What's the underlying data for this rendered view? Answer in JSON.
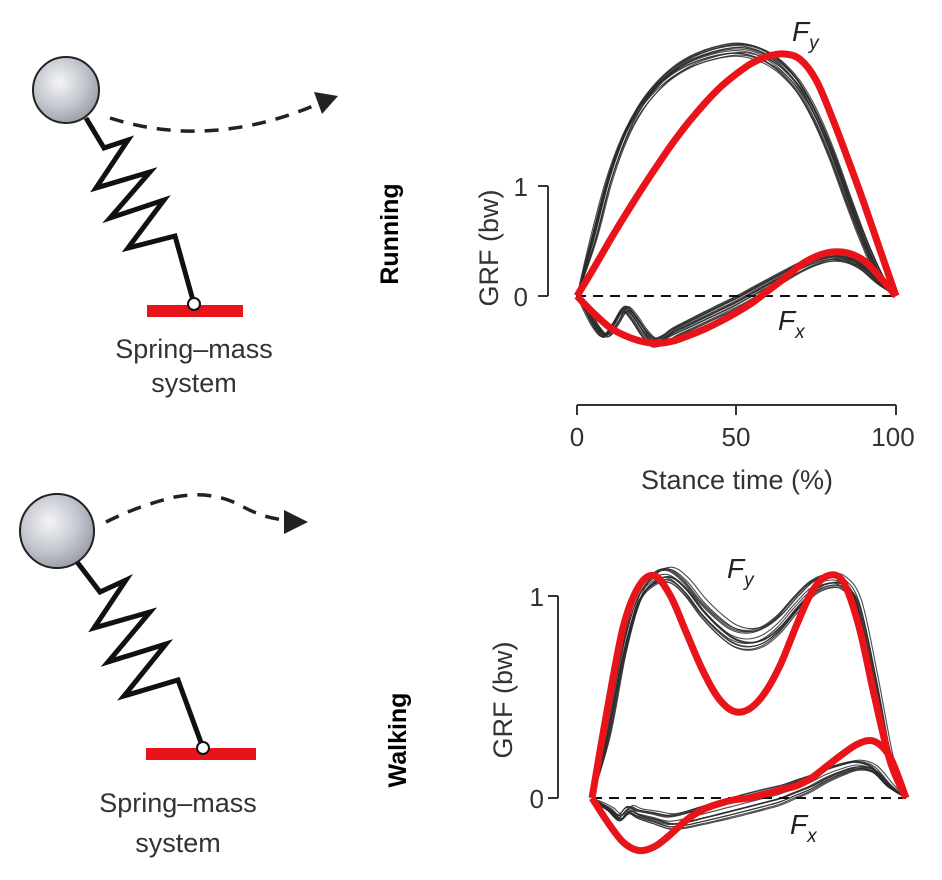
{
  "panels": [
    {
      "row_label": "Running",
      "model_caption_line1": "Spring–mass",
      "model_caption_line2": "system"
    },
    {
      "row_label": "Walking",
      "model_caption_line1": "Spring–mass",
      "model_caption_line2": "system"
    }
  ],
  "colors": {
    "measured": "#2a2a2a",
    "model": "#e8141a",
    "ground": "#e8141a",
    "mass": "#c8cbd3",
    "spring": "#111111"
  },
  "chart_data": [
    {
      "type": "line",
      "title": "",
      "ylabel": "GRF (bw)",
      "xlabel": "Stance time (%)",
      "xlim": [
        0,
        100
      ],
      "ylim": [
        -0.5,
        2.5
      ],
      "xticks": [
        "0",
        "50",
        "100"
      ],
      "yticks": [
        "0",
        "1"
      ],
      "zero_line": "dashed",
      "annotations": [
        {
          "text": "F",
          "sub": "y",
          "x": 73,
          "y": 2.36
        },
        {
          "text": "F",
          "sub": "x",
          "x": 66,
          "y": -0.28
        }
      ],
      "series": [
        {
          "role": "model",
          "component": "Fy",
          "x": [
            0,
            5,
            10,
            15,
            20,
            25,
            30,
            35,
            40,
            45,
            50,
            55,
            60,
            65,
            70,
            75,
            80,
            85,
            90,
            95,
            100
          ],
          "y": [
            0,
            0.24,
            0.49,
            0.73,
            0.96,
            1.18,
            1.39,
            1.58,
            1.75,
            1.9,
            2.02,
            2.12,
            2.18,
            2.2,
            2.15,
            1.96,
            1.62,
            1.24,
            0.84,
            0.42,
            0
          ]
        },
        {
          "role": "model",
          "component": "Fx",
          "x": [
            0,
            5,
            10,
            15,
            20,
            25,
            30,
            35,
            40,
            45,
            50,
            55,
            60,
            65,
            70,
            75,
            80,
            85,
            90,
            95,
            100
          ],
          "y": [
            0,
            -0.15,
            -0.28,
            -0.36,
            -0.41,
            -0.43,
            -0.41,
            -0.36,
            -0.3,
            -0.23,
            -0.15,
            -0.06,
            0.05,
            0.16,
            0.28,
            0.36,
            0.4,
            0.39,
            0.32,
            0.17,
            0
          ]
        },
        {
          "role": "measured",
          "component": "Fy",
          "x": [
            0,
            5,
            10,
            15,
            20,
            25,
            30,
            35,
            40,
            45,
            50,
            55,
            60,
            65,
            70,
            75,
            80,
            85,
            90,
            95,
            100
          ],
          "y": [
            0,
            0.5,
            1.05,
            1.45,
            1.72,
            1.9,
            2.03,
            2.12,
            2.18,
            2.22,
            2.24,
            2.22,
            2.16,
            2.05,
            1.88,
            1.62,
            1.28,
            0.88,
            0.5,
            0.18,
            0
          ]
        },
        {
          "role": "measured",
          "component": "Fx",
          "x": [
            0,
            3,
            6,
            9,
            12,
            15,
            18,
            21,
            24,
            27,
            30,
            35,
            40,
            45,
            50,
            55,
            60,
            65,
            70,
            75,
            80,
            85,
            90,
            95,
            100
          ],
          "y": [
            0,
            -0.12,
            -0.28,
            -0.36,
            -0.25,
            -0.12,
            -0.2,
            -0.33,
            -0.42,
            -0.4,
            -0.34,
            -0.27,
            -0.2,
            -0.13,
            -0.06,
            0.02,
            0.1,
            0.18,
            0.26,
            0.32,
            0.35,
            0.33,
            0.25,
            0.12,
            0
          ]
        }
      ]
    },
    {
      "type": "line",
      "title": "",
      "ylabel": "GRF (bw)",
      "xlabel": "",
      "xlim": [
        0,
        100
      ],
      "ylim": [
        -0.2,
        1.2
      ],
      "yticks": [
        "0",
        "1"
      ],
      "zero_line": "dashed",
      "annotations": [
        {
          "text": "F",
          "sub": "y",
          "x": 42,
          "y": 1.12
        },
        {
          "text": "F",
          "sub": "x",
          "x": 59,
          "y": -0.15
        }
      ],
      "series": [
        {
          "role": "model",
          "component": "Fy",
          "x": [
            0,
            5,
            10,
            15,
            20,
            25,
            30,
            35,
            40,
            45,
            50,
            55,
            60,
            65,
            70,
            75,
            80,
            85,
            90,
            95,
            100
          ],
          "y": [
            0,
            0.45,
            0.85,
            1.05,
            1.1,
            1.0,
            0.82,
            0.64,
            0.5,
            0.43,
            0.44,
            0.52,
            0.66,
            0.85,
            1.02,
            1.1,
            1.07,
            0.85,
            0.5,
            0.18,
            0
          ]
        },
        {
          "role": "model",
          "component": "Fx",
          "x": [
            0,
            5,
            10,
            15,
            20,
            25,
            30,
            35,
            40,
            45,
            50,
            55,
            60,
            65,
            70,
            75,
            80,
            85,
            90,
            95,
            100
          ],
          "y": [
            0,
            -0.12,
            -0.22,
            -0.26,
            -0.24,
            -0.18,
            -0.11,
            -0.06,
            -0.03,
            -0.01,
            0.0,
            0.02,
            0.04,
            0.06,
            0.1,
            0.16,
            0.22,
            0.27,
            0.28,
            0.2,
            0
          ]
        },
        {
          "role": "measured",
          "component": "Fy",
          "x": [
            0,
            5,
            10,
            15,
            20,
            25,
            30,
            35,
            40,
            45,
            50,
            55,
            60,
            65,
            70,
            75,
            80,
            85,
            90,
            95,
            100
          ],
          "y": [
            0,
            0.3,
            0.7,
            0.98,
            1.08,
            1.1,
            1.04,
            0.94,
            0.86,
            0.8,
            0.78,
            0.8,
            0.86,
            0.95,
            1.03,
            1.07,
            1.06,
            0.95,
            0.6,
            0.2,
            0
          ]
        },
        {
          "role": "measured",
          "component": "Fx",
          "x": [
            0,
            3,
            6,
            9,
            12,
            15,
            20,
            25,
            30,
            35,
            40,
            45,
            50,
            55,
            60,
            65,
            70,
            75,
            80,
            85,
            90,
            95,
            100
          ],
          "y": [
            0,
            -0.03,
            -0.06,
            -0.1,
            -0.06,
            -0.08,
            -0.1,
            -0.12,
            -0.11,
            -0.09,
            -0.07,
            -0.05,
            -0.03,
            -0.01,
            0.01,
            0.04,
            0.07,
            0.11,
            0.14,
            0.16,
            0.14,
            0.06,
            0
          ]
        }
      ]
    }
  ]
}
